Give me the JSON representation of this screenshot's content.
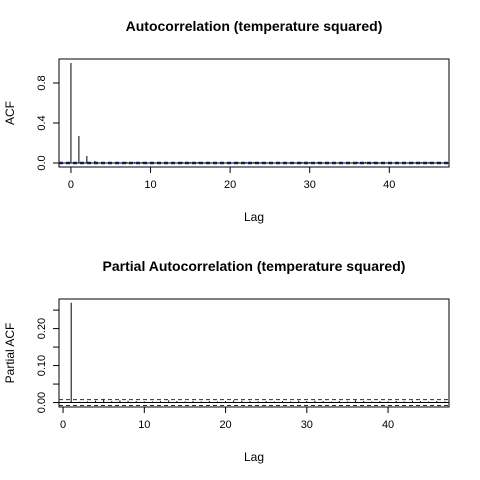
{
  "chart_data": [
    {
      "type": "bar",
      "title": "Autocorrelation (temperature squared)",
      "xlabel": "Lag",
      "ylabel": "ACF",
      "xlim": [
        -1.5,
        47.5
      ],
      "ylim": [
        -0.04,
        1.04
      ],
      "x_ticks": [
        0,
        10,
        20,
        30,
        40
      ],
      "y_ticks": [
        0.0,
        0.4,
        0.8
      ],
      "y_tick_labels": [
        "0.0",
        "0.4",
        "0.8"
      ],
      "confidence_bound": 0.008,
      "zero_line": true,
      "lags": [
        0,
        1,
        2,
        3,
        4,
        5,
        6,
        7,
        8,
        9,
        10,
        11,
        12,
        13,
        14,
        15,
        16,
        17,
        18,
        19,
        20,
        21,
        22,
        23,
        24,
        25,
        26,
        27,
        28,
        29,
        30,
        31,
        32,
        33,
        34,
        35,
        36,
        37,
        38,
        39,
        40,
        41,
        42,
        43,
        44,
        45,
        46,
        47
      ],
      "values": [
        1.0,
        0.27,
        0.07,
        0.02,
        0.01,
        0.01,
        0.01,
        0.01,
        0.01,
        0.01,
        0.01,
        0.01,
        0.01,
        0.01,
        0.01,
        0.01,
        0.01,
        0.01,
        0.01,
        0.01,
        0.01,
        0.01,
        0.01,
        0.01,
        0.01,
        0.01,
        0.01,
        0.01,
        0.01,
        0.01,
        0.01,
        0.01,
        0.01,
        0.01,
        0.01,
        0.01,
        0.01,
        0.01,
        0.01,
        0.01,
        0.01,
        0.01,
        0.01,
        0.01,
        0.01,
        0.01,
        0.01,
        0.01
      ],
      "colors": {
        "bars": "#000000",
        "ci": "#1a237e"
      }
    },
    {
      "type": "bar",
      "title": "Partial Autocorrelation (temperature squared)",
      "xlabel": "Lag",
      "ylabel": "Partial ACF",
      "xlim": [
        -0.5,
        47.5
      ],
      "ylim": [
        -0.012,
        0.28
      ],
      "x_ticks": [
        0,
        10,
        20,
        30,
        40
      ],
      "y_ticks": [
        0.0,
        0.1,
        0.2
      ],
      "y_tick_labels": [
        "0.00",
        "0.10",
        "0.20"
      ],
      "minor_y_ticks": [
        0.05,
        0.15,
        0.25
      ],
      "confidence_bound": 0.008,
      "zero_line": true,
      "lags": [
        1,
        2,
        3,
        4,
        5,
        6,
        7,
        8,
        9,
        10,
        11,
        12,
        13,
        14,
        15,
        16,
        17,
        18,
        19,
        20,
        21,
        22,
        23,
        24,
        25,
        26,
        27,
        28,
        29,
        30,
        31,
        32,
        33,
        34,
        35,
        36,
        37,
        38,
        39,
        40,
        41,
        42,
        43,
        44,
        45,
        46,
        47
      ],
      "values": [
        0.27,
        0.002,
        0.003,
        0.005,
        0.01,
        0.004,
        0.006,
        0.005,
        0.004,
        0.003,
        0.003,
        0.004,
        0.006,
        0.004,
        0.003,
        0.004,
        0.003,
        0.004,
        0.003,
        0.004,
        0.006,
        0.005,
        0.004,
        0.003,
        0.004,
        0.003,
        0.004,
        0.003,
        0.005,
        0.004,
        0.005,
        0.004,
        0.003,
        0.004,
        0.003,
        0.006,
        0.004,
        0.003,
        0.004,
        0.003,
        0.004,
        0.003,
        0.005,
        0.004,
        0.003,
        0.004,
        0.003
      ],
      "colors": {
        "bars": "#000000",
        "ci": "#1a237e"
      }
    }
  ]
}
